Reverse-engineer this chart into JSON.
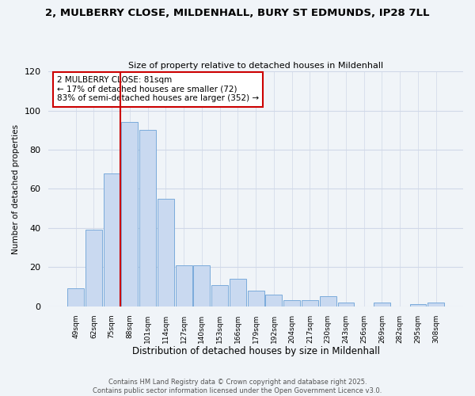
{
  "title_line1": "2, MULBERRY CLOSE, MILDENHALL, BURY ST EDMUNDS, IP28 7LL",
  "title_line2": "Size of property relative to detached houses in Mildenhall",
  "xlabel": "Distribution of detached houses by size in Mildenhall",
  "ylabel": "Number of detached properties",
  "bar_labels": [
    "49sqm",
    "62sqm",
    "75sqm",
    "88sqm",
    "101sqm",
    "114sqm",
    "127sqm",
    "140sqm",
    "153sqm",
    "166sqm",
    "179sqm",
    "192sqm",
    "204sqm",
    "217sqm",
    "230sqm",
    "243sqm",
    "256sqm",
    "269sqm",
    "282sqm",
    "295sqm",
    "308sqm"
  ],
  "bar_values": [
    9,
    39,
    68,
    94,
    90,
    55,
    21,
    21,
    11,
    14,
    8,
    6,
    3,
    3,
    5,
    2,
    0,
    2,
    0,
    1,
    2
  ],
  "bar_color": "#c9d9f0",
  "bar_edgecolor": "#7aabdb",
  "vline_color": "#cc0000",
  "ylim": [
    0,
    120
  ],
  "yticks": [
    0,
    20,
    40,
    60,
    80,
    100,
    120
  ],
  "annotation_title": "2 MULBERRY CLOSE: 81sqm",
  "annotation_line1": "← 17% of detached houses are smaller (72)",
  "annotation_line2": "83% of semi-detached houses are larger (352) →",
  "annotation_box_color": "#ffffff",
  "annotation_box_edgecolor": "#cc0000",
  "footer_line1": "Contains HM Land Registry data © Crown copyright and database right 2025.",
  "footer_line2": "Contains public sector information licensed under the Open Government Licence v3.0.",
  "background_color": "#f0f4f8",
  "grid_color": "#d0d8e8"
}
